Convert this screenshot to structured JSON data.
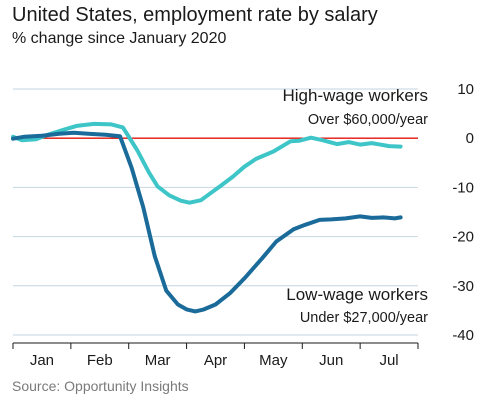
{
  "header": {
    "title": "United States, employment rate by salary",
    "subtitle": "% change since January 2020"
  },
  "footer": {
    "source": "Source: Opportunity Insights"
  },
  "chart_data": {
    "type": "line",
    "title": "United States, employment rate by salary",
    "subtitle": "% change since January 2020",
    "ylim": [
      -40,
      10
    ],
    "yticks": [
      10,
      0,
      -10,
      -20,
      -30,
      -40
    ],
    "ytick_labels": [
      "10",
      "0",
      "-10",
      "-20",
      "-30",
      "-40"
    ],
    "xlim": [
      0,
      7
    ],
    "xtick_labels": [
      "Jan",
      "Feb",
      "Mar",
      "Apr",
      "May",
      "Jun",
      "Jul"
    ],
    "grid": true,
    "reference_line": {
      "y": 0,
      "color": "#e3120b"
    },
    "series": [
      {
        "name": "High-wage workers",
        "annotation": "Over $60,000/year",
        "color": "#3ec5c8",
        "x": [
          0.0,
          0.15,
          0.4,
          0.6,
          0.9,
          1.1,
          1.4,
          1.7,
          1.9,
          2.15,
          2.35,
          2.5,
          2.7,
          2.9,
          3.05,
          3.25,
          3.4,
          3.6,
          3.8,
          4.0,
          4.2,
          4.5,
          4.8,
          4.95,
          5.15,
          5.35,
          5.6,
          5.8,
          6.0,
          6.2,
          6.5,
          6.7
        ],
        "y": [
          0.3,
          -0.4,
          -0.2,
          0.7,
          1.8,
          2.5,
          2.9,
          2.8,
          2.2,
          -2.5,
          -7.0,
          -9.8,
          -11.6,
          -12.7,
          -13.1,
          -12.6,
          -11.3,
          -9.6,
          -7.8,
          -5.8,
          -4.2,
          -2.7,
          -0.6,
          -0.5,
          0.1,
          -0.4,
          -1.2,
          -0.8,
          -1.3,
          -1.0,
          -1.6,
          -1.7
        ]
      },
      {
        "name": "Low-wage workers",
        "annotation": "Under $27,000/year",
        "color": "#1a6b9a",
        "x": [
          0.0,
          0.2,
          0.5,
          0.8,
          1.05,
          1.3,
          1.6,
          1.85,
          2.05,
          2.25,
          2.45,
          2.65,
          2.85,
          3.0,
          3.15,
          3.3,
          3.5,
          3.75,
          4.0,
          4.3,
          4.55,
          4.85,
          5.05,
          5.3,
          5.5,
          5.75,
          6.0,
          6.2,
          6.4,
          6.6,
          6.7
        ],
        "y": [
          -0.1,
          0.3,
          0.5,
          0.9,
          1.1,
          0.9,
          0.7,
          0.4,
          -6.0,
          -14.0,
          -24.0,
          -31.0,
          -33.8,
          -34.8,
          -35.2,
          -34.8,
          -33.8,
          -31.5,
          -28.5,
          -24.5,
          -21.0,
          -18.5,
          -17.6,
          -16.6,
          -16.5,
          -16.3,
          -15.9,
          -16.2,
          -16.1,
          -16.3,
          -16.1
        ]
      }
    ]
  }
}
